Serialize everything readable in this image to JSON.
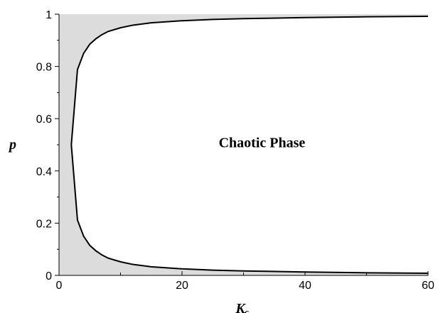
{
  "chart_data": {
    "type": "area",
    "xlabel": "K",
    "xlabel_subscript": "c",
    "ylabel": "p",
    "xlim": [
      0,
      60
    ],
    "ylim": [
      0,
      1
    ],
    "x_ticks": [
      0,
      20,
      40,
      60
    ],
    "x_minor_step": 10,
    "y_ticks": [
      0,
      0.2,
      0.4,
      0.6,
      0.8,
      1
    ],
    "y_tick_labels": [
      "0",
      "0.2",
      "0.4",
      "0.6",
      "0.8",
      "1"
    ],
    "annotation": {
      "text": "Chaotic Phase",
      "x": 33,
      "y": 0.51
    },
    "grid": false,
    "colors": {
      "frozen_fill": "#dcdcdc",
      "curve": "#000000"
    },
    "upper_boundary": {
      "x": [
        2,
        3,
        4,
        5,
        6,
        7,
        8,
        10,
        12,
        15,
        20,
        25,
        30,
        40,
        50,
        60
      ],
      "y": [
        0.5,
        0.788,
        0.85,
        0.885,
        0.906,
        0.922,
        0.934,
        0.948,
        0.958,
        0.967,
        0.975,
        0.98,
        0.983,
        0.987,
        0.99,
        0.992
      ]
    },
    "lower_boundary": {
      "x": [
        2,
        3,
        4,
        5,
        6,
        7,
        8,
        10,
        12,
        15,
        20,
        25,
        30,
        40,
        50,
        60
      ],
      "y": [
        0.5,
        0.212,
        0.15,
        0.115,
        0.094,
        0.078,
        0.066,
        0.052,
        0.042,
        0.033,
        0.025,
        0.02,
        0.017,
        0.013,
        0.01,
        0.008
      ]
    }
  }
}
